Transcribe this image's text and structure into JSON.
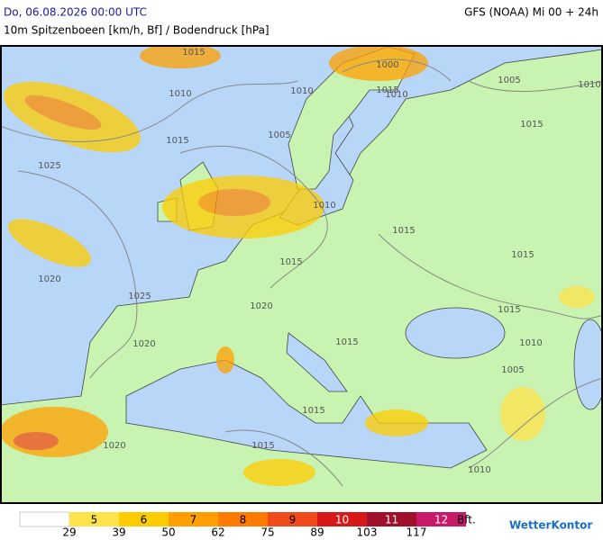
{
  "header": {
    "datetime": "Do, 06.08.2026 00:00 UTC",
    "model": "GFS (NOAA) Mi 00 + 24h",
    "subtitle": "10m Spitzenboeen [km/h, Bf] / Bodendruck [hPa]"
  },
  "isobar_labels": [
    "1015",
    "1010",
    "1015",
    "1025",
    "1020",
    "1025",
    "1010",
    "1005",
    "1010",
    "1015",
    "1015",
    "1020",
    "1020",
    "1020",
    "1015",
    "1015",
    "1015",
    "1015",
    "1010",
    "1005",
    "1010",
    "1015",
    "1005",
    "1010",
    "1015",
    "1015",
    "1010",
    "1000"
  ],
  "legend": {
    "bft": [
      5,
      6,
      7,
      8,
      9,
      10,
      11,
      12
    ],
    "colors": [
      "#ffe34d",
      "#ffcc00",
      "#ffa000",
      "#ff7a00",
      "#f04a1a",
      "#d81818",
      "#a0102a",
      "#c8186a"
    ],
    "kmh": [
      29,
      39,
      50,
      62,
      75,
      89,
      103,
      117
    ],
    "unit": "Bft."
  },
  "brand": "WetterKontor"
}
